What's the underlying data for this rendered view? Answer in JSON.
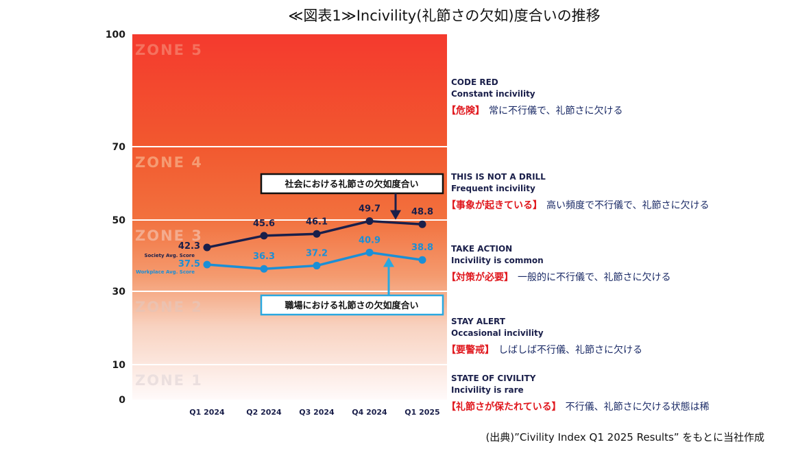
{
  "title": "≪図表1≫Incivility(礼節さの欠如)度合いの推移",
  "source": "(出典)”Civility Index Q1 2025 Results” をもとに当社作成",
  "colors": {
    "society": "#1a1f4a",
    "workplace": "#1b8fd6",
    "zone5": "#f43a2e",
    "zone4": "#f2703d",
    "zone3": "#f49a6e",
    "zone2": "#f8d2c0",
    "zone1": "#fdf3ee",
    "jp_red": "#e0181e",
    "jp_navy": "#1a2a66"
  },
  "chart_data": {
    "type": "line",
    "categories": [
      "Q1 2024",
      "Q2 2024",
      "Q3 2024",
      "Q4 2024",
      "Q1 2025"
    ],
    "y_ticks": [
      "0",
      "10",
      "30",
      "50",
      "70",
      "100"
    ],
    "ylim": [
      0,
      100
    ],
    "series": [
      {
        "name": "Society Avg. Score",
        "values": [
          42.3,
          45.6,
          46.1,
          49.7,
          48.8
        ],
        "labels": [
          "42.3",
          "45.6",
          "46.1",
          "49.7",
          "48.8"
        ]
      },
      {
        "name": "Workplace Avg. Score",
        "values": [
          37.5,
          36.3,
          37.2,
          40.9,
          38.8
        ],
        "labels": [
          "37.5",
          "36.3",
          "37.2",
          "40.9",
          "38.8"
        ]
      }
    ],
    "zones": [
      {
        "label": "ZONE 1",
        "from": 0,
        "to": 10,
        "en_title": "STATE OF CIVILITY",
        "en_sub": "Incivility is rare",
        "jp_tag": "【礼節さが保たれている】",
        "jp_text": "不行儀、礼節さに欠ける状態は稀"
      },
      {
        "label": "ZONE 2",
        "from": 10,
        "to": 30,
        "en_title": "STAY ALERT",
        "en_sub": "Occasional incivility",
        "jp_tag": "【要警戒】",
        "jp_text": "しばしば不行儀、礼節さに欠ける"
      },
      {
        "label": "ZONE 3",
        "from": 30,
        "to": 50,
        "en_title": "TAKE ACTION",
        "en_sub": "Incivility is common",
        "jp_tag": "【対策が必要】",
        "jp_text": "一般的に不行儀で、礼節さに欠ける"
      },
      {
        "label": "ZONE 4",
        "from": 50,
        "to": 70,
        "en_title": "THIS IS NOT A DRILL",
        "en_sub": "Frequent incivility",
        "jp_tag": "【事象が起きている】",
        "jp_text": "高い頻度で不行儀で、礼節さに欠ける"
      },
      {
        "label": "ZONE 5",
        "from": 70,
        "to": 100,
        "en_title": "CODE RED",
        "en_sub": "Constant incivility",
        "jp_tag": "【危険】",
        "jp_text": "常に不行儀で、礼節さに欠ける"
      }
    ],
    "annotations": {
      "society": "社会における礼節さの欠如度合い",
      "workplace": "職場における礼節さの欠如度合い"
    }
  }
}
